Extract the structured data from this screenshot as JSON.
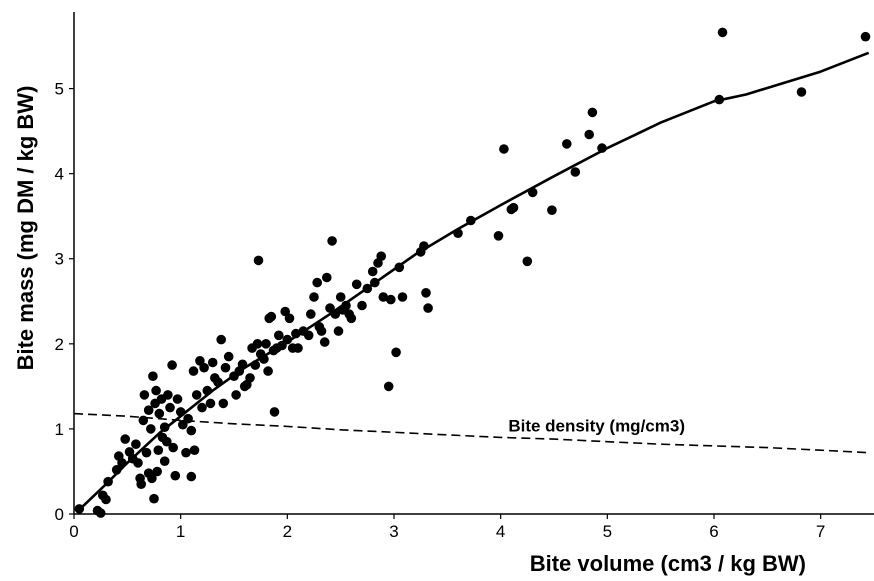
{
  "chart_data": {
    "type": "scatter",
    "xlabel": "Bite volume (cm3 / kg BW)",
    "ylabel": "Bite mass (mg DM / kg BW)",
    "xlim": [
      0,
      7.5
    ],
    "ylim": [
      0,
      5.9
    ],
    "x_ticks": [
      0,
      1,
      2,
      3,
      4,
      5,
      6,
      7
    ],
    "y_ticks": [
      0,
      1,
      2,
      3,
      4,
      5
    ],
    "grid": false,
    "annotations": [
      {
        "text": "Bite density (mg/cm3)",
        "x": 4.9,
        "y": 0.97
      }
    ],
    "series": [
      {
        "kind": "points",
        "points": [
          [
            0.05,
            0.06
          ],
          [
            0.22,
            0.04
          ],
          [
            0.25,
            0.01
          ],
          [
            0.27,
            0.22
          ],
          [
            0.3,
            0.17
          ],
          [
            0.32,
            0.38
          ],
          [
            0.4,
            0.52
          ],
          [
            0.42,
            0.68
          ],
          [
            0.45,
            0.6
          ],
          [
            0.48,
            0.88
          ],
          [
            0.52,
            0.73
          ],
          [
            0.55,
            0.65
          ],
          [
            0.58,
            0.82
          ],
          [
            0.6,
            0.6
          ],
          [
            0.62,
            0.42
          ],
          [
            0.63,
            0.35
          ],
          [
            0.65,
            1.1
          ],
          [
            0.66,
            1.4
          ],
          [
            0.68,
            0.72
          ],
          [
            0.7,
            0.48
          ],
          [
            0.7,
            1.22
          ],
          [
            0.72,
            1.0
          ],
          [
            0.73,
            0.42
          ],
          [
            0.74,
            1.62
          ],
          [
            0.75,
            0.18
          ],
          [
            0.76,
            1.3
          ],
          [
            0.77,
            1.45
          ],
          [
            0.78,
            0.5
          ],
          [
            0.79,
            0.75
          ],
          [
            0.8,
            1.18
          ],
          [
            0.82,
            1.35
          ],
          [
            0.83,
            0.9
          ],
          [
            0.85,
            1.02
          ],
          [
            0.85,
            0.62
          ],
          [
            0.87,
            0.85
          ],
          [
            0.88,
            1.4
          ],
          [
            0.9,
            1.25
          ],
          [
            0.92,
            1.75
          ],
          [
            0.93,
            0.78
          ],
          [
            0.95,
            0.45
          ],
          [
            0.97,
            1.35
          ],
          [
            1.0,
            1.2
          ],
          [
            1.02,
            1.05
          ],
          [
            1.05,
            0.72
          ],
          [
            1.07,
            1.12
          ],
          [
            1.1,
            0.98
          ],
          [
            1.1,
            0.44
          ],
          [
            1.12,
            1.68
          ],
          [
            1.13,
            0.75
          ],
          [
            1.15,
            1.4
          ],
          [
            1.18,
            1.8
          ],
          [
            1.2,
            1.25
          ],
          [
            1.22,
            1.72
          ],
          [
            1.25,
            1.45
          ],
          [
            1.28,
            1.3
          ],
          [
            1.3,
            1.78
          ],
          [
            1.32,
            1.6
          ],
          [
            1.35,
            1.55
          ],
          [
            1.38,
            2.05
          ],
          [
            1.4,
            1.3
          ],
          [
            1.42,
            1.72
          ],
          [
            1.45,
            1.85
          ],
          [
            1.5,
            1.62
          ],
          [
            1.52,
            1.4
          ],
          [
            1.55,
            1.68
          ],
          [
            1.58,
            1.76
          ],
          [
            1.6,
            1.5
          ],
          [
            1.62,
            1.52
          ],
          [
            1.65,
            1.6
          ],
          [
            1.67,
            1.95
          ],
          [
            1.7,
            1.75
          ],
          [
            1.72,
            2.0
          ],
          [
            1.73,
            2.98
          ],
          [
            1.75,
            1.88
          ],
          [
            1.78,
            1.82
          ],
          [
            1.8,
            2.0
          ],
          [
            1.82,
            1.68
          ],
          [
            1.83,
            2.3
          ],
          [
            1.85,
            2.32
          ],
          [
            1.87,
            1.92
          ],
          [
            1.88,
            1.2
          ],
          [
            1.9,
            1.95
          ],
          [
            1.92,
            2.1
          ],
          [
            1.95,
            1.98
          ],
          [
            1.98,
            2.38
          ],
          [
            2.0,
            2.05
          ],
          [
            2.02,
            2.3
          ],
          [
            2.05,
            1.95
          ],
          [
            2.08,
            2.12
          ],
          [
            2.1,
            1.95
          ],
          [
            2.15,
            2.15
          ],
          [
            2.2,
            2.1
          ],
          [
            2.22,
            2.35
          ],
          [
            2.25,
            2.55
          ],
          [
            2.28,
            2.72
          ],
          [
            2.3,
            2.2
          ],
          [
            2.32,
            2.15
          ],
          [
            2.35,
            2.02
          ],
          [
            2.37,
            2.78
          ],
          [
            2.4,
            2.42
          ],
          [
            2.42,
            3.21
          ],
          [
            2.45,
            2.35
          ],
          [
            2.48,
            2.15
          ],
          [
            2.5,
            2.55
          ],
          [
            2.52,
            2.4
          ],
          [
            2.55,
            2.45
          ],
          [
            2.58,
            2.35
          ],
          [
            2.6,
            2.3
          ],
          [
            2.65,
            2.7
          ],
          [
            2.7,
            2.45
          ],
          [
            2.75,
            2.65
          ],
          [
            2.8,
            2.85
          ],
          [
            2.82,
            2.72
          ],
          [
            2.85,
            2.95
          ],
          [
            2.88,
            3.03
          ],
          [
            2.9,
            2.55
          ],
          [
            2.95,
            1.5
          ],
          [
            2.97,
            2.52
          ],
          [
            3.02,
            1.9
          ],
          [
            3.05,
            2.9
          ],
          [
            3.08,
            2.55
          ],
          [
            3.25,
            3.08
          ],
          [
            3.28,
            3.15
          ],
          [
            3.3,
            2.6
          ],
          [
            3.32,
            2.42
          ],
          [
            3.6,
            3.3
          ],
          [
            3.72,
            3.45
          ],
          [
            3.98,
            3.27
          ],
          [
            4.03,
            4.29
          ],
          [
            4.1,
            3.58
          ],
          [
            4.12,
            3.6
          ],
          [
            4.25,
            2.97
          ],
          [
            4.3,
            3.78
          ],
          [
            4.48,
            3.57
          ],
          [
            4.62,
            4.35
          ],
          [
            4.7,
            4.02
          ],
          [
            4.83,
            4.46
          ],
          [
            4.86,
            4.72
          ],
          [
            4.95,
            4.3
          ],
          [
            6.05,
            4.87
          ],
          [
            6.08,
            5.66
          ],
          [
            6.82,
            4.96
          ],
          [
            7.42,
            5.61
          ]
        ]
      },
      {
        "kind": "fit",
        "line_style": "solid",
        "x": [
          0.05,
          0.3,
          0.5,
          0.8,
          1.0,
          1.3,
          1.6,
          2.0,
          2.4,
          2.8,
          3.2,
          3.6,
          4.0,
          4.5,
          5.0,
          5.5,
          6.0,
          6.3,
          7.0,
          7.45
        ],
        "y": [
          0.05,
          0.35,
          0.6,
          0.95,
          1.15,
          1.45,
          1.72,
          2.02,
          2.35,
          2.7,
          3.05,
          3.35,
          3.63,
          3.97,
          4.3,
          4.6,
          4.85,
          4.93,
          5.2,
          5.42
        ]
      },
      {
        "kind": "density",
        "line_style": "dashed",
        "x": [
          0.0,
          0.5,
          1.0,
          1.5,
          2.0,
          2.5,
          3.0,
          3.5,
          4.0,
          4.5,
          5.0,
          5.5,
          6.0,
          6.5,
          7.0,
          7.45
        ],
        "y": [
          1.18,
          1.15,
          1.1,
          1.06,
          1.03,
          0.99,
          0.96,
          0.93,
          0.9,
          0.88,
          0.85,
          0.82,
          0.8,
          0.78,
          0.75,
          0.72
        ]
      }
    ]
  }
}
